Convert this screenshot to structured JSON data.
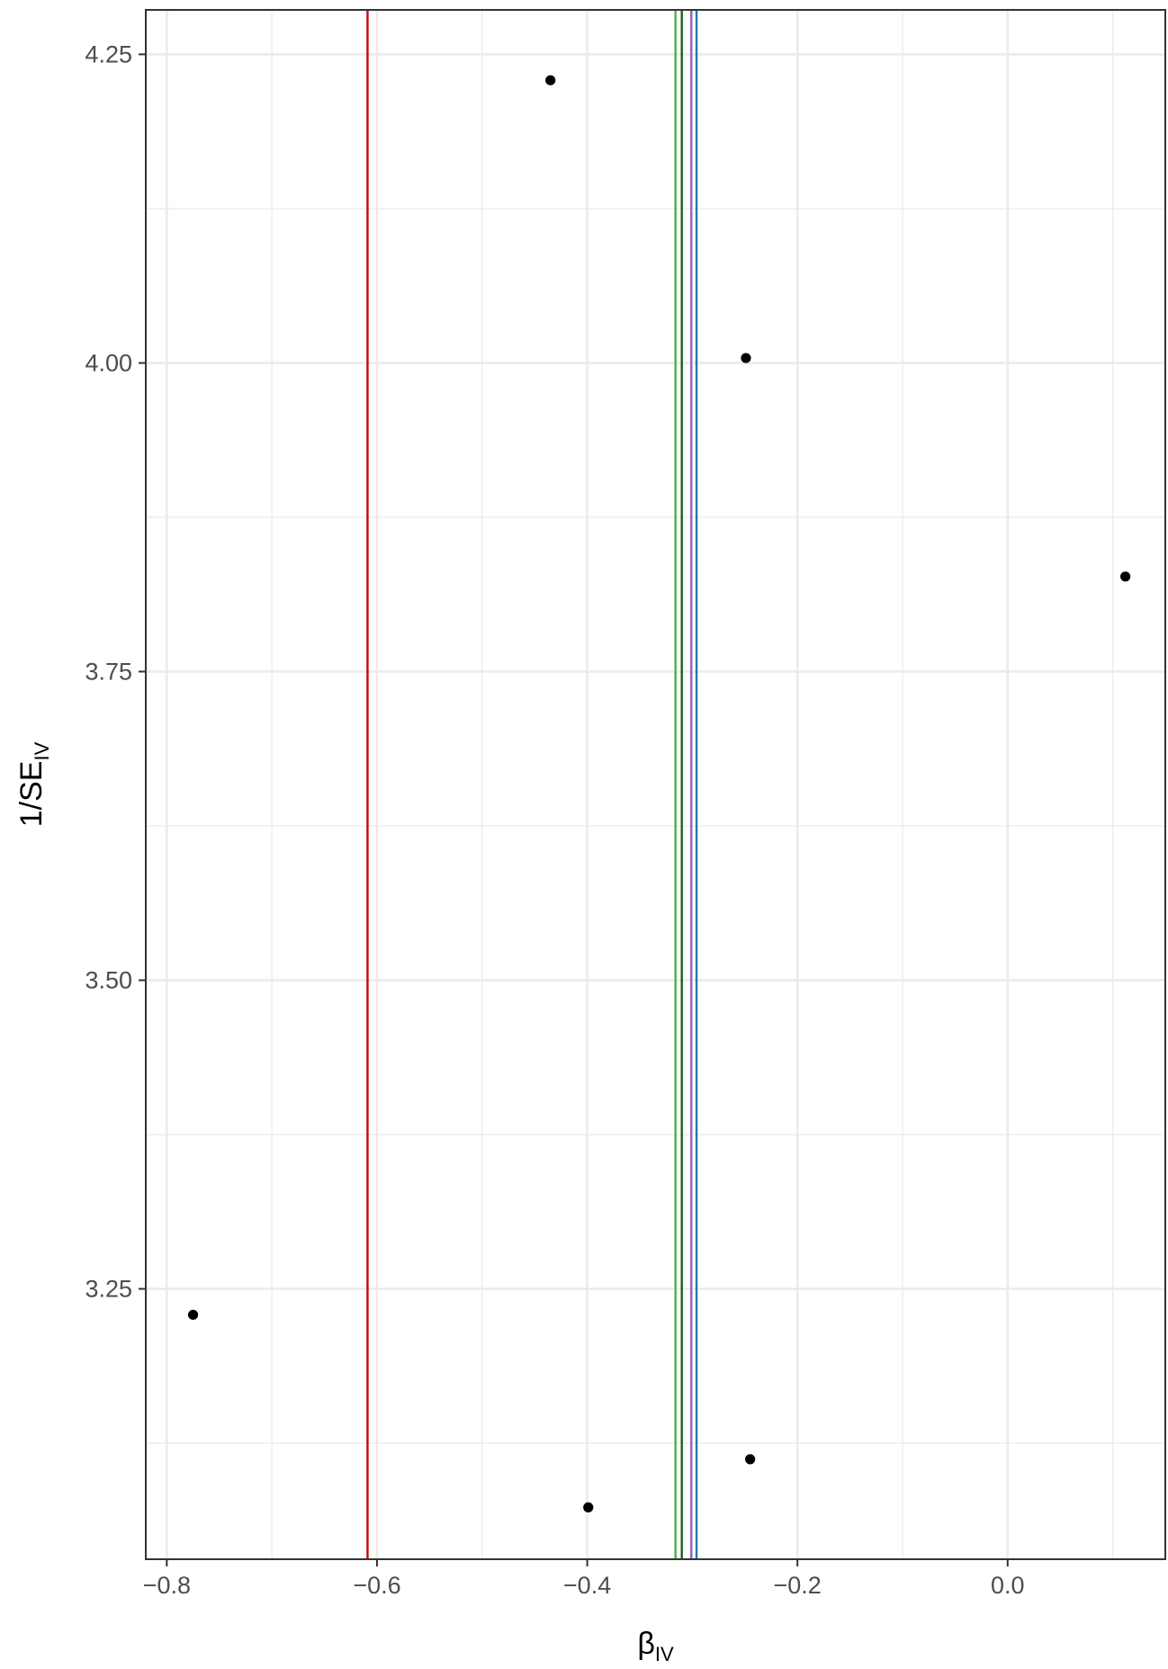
{
  "chart_data": {
    "type": "scatter",
    "xlabel": {
      "main": "β",
      "sub": "IV"
    },
    "ylabel": {
      "main": "1/SE",
      "sub": "IV"
    },
    "xlim": [
      -0.82,
      0.15
    ],
    "ylim": [
      3.031,
      4.286
    ],
    "x_ticks": [
      -0.8,
      -0.6,
      -0.4,
      -0.2,
      0.0
    ],
    "x_tick_labels": [
      "−0.8",
      "−0.6",
      "−0.4",
      "−0.2",
      "0.0"
    ],
    "y_ticks": [
      3.25,
      3.5,
      3.75,
      4.0,
      4.25
    ],
    "y_tick_labels": [
      "3.25",
      "3.50",
      "3.75",
      "4.00",
      "4.25"
    ],
    "grid": true,
    "legend": "none",
    "points": [
      {
        "x": -0.775,
        "y": 3.229
      },
      {
        "x": -0.435,
        "y": 4.229
      },
      {
        "x": -0.249,
        "y": 4.004
      },
      {
        "x": 0.112,
        "y": 3.827
      },
      {
        "x": -0.399,
        "y": 3.073
      },
      {
        "x": -0.245,
        "y": 3.112
      }
    ],
    "vlines": [
      {
        "x": -0.609,
        "color": "#cc0000"
      },
      {
        "x": -0.316,
        "color": "#4daf4a"
      },
      {
        "x": -0.31,
        "color": "#1b5e20"
      },
      {
        "x": -0.301,
        "color": "#9467bd"
      },
      {
        "x": -0.296,
        "color": "#1f77b4"
      }
    ],
    "colors": {
      "points": "#000000",
      "grid": "#ebebeb",
      "frame": "#333333",
      "tick_text": "#4d4d4d"
    }
  }
}
